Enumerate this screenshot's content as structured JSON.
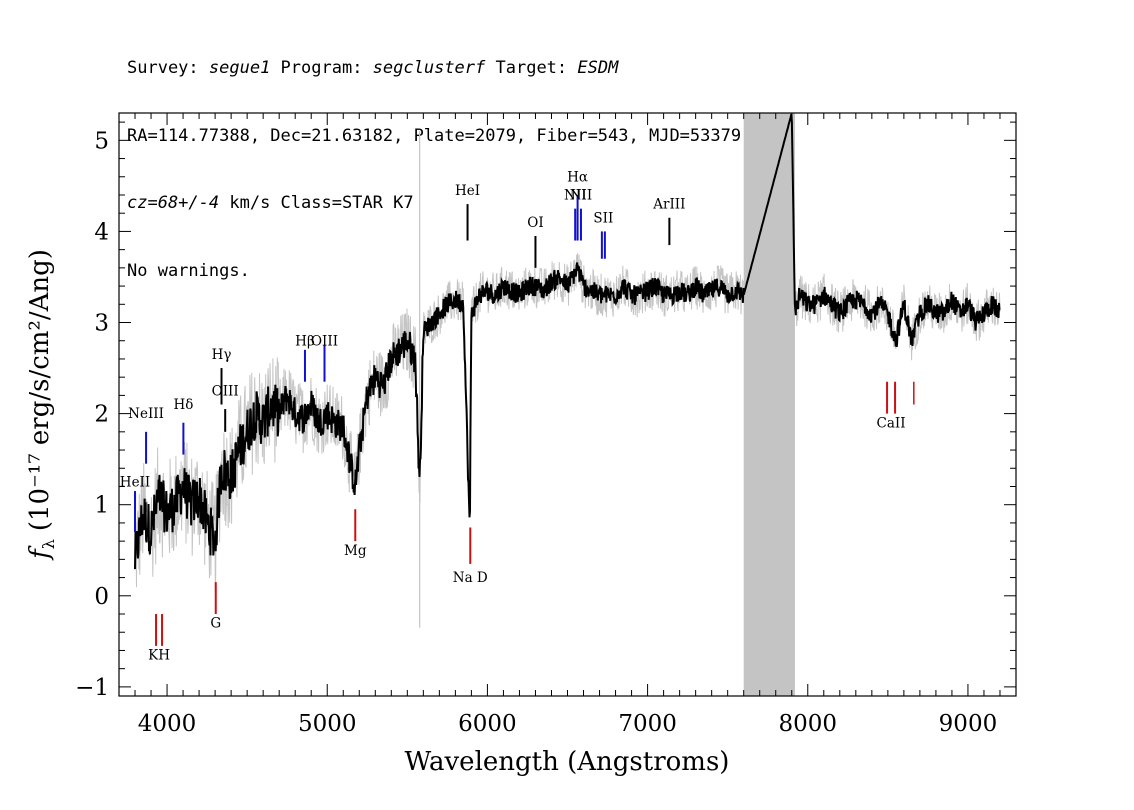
{
  "header": {
    "line1": [
      {
        "text": "Survey: ",
        "italic": false
      },
      {
        "text": "segue1",
        "italic": true
      },
      {
        "text": " Program: ",
        "italic": false
      },
      {
        "text": "segclusterf",
        "italic": true
      },
      {
        "text": " Target: ",
        "italic": false
      },
      {
        "text": "ESDM",
        "italic": true
      }
    ],
    "line2": "RA=114.77388, Dec=21.63182, Plate=2079, Fiber=543, MJD=53379",
    "line3": [
      {
        "text": "cz=68+/-4",
        "italic": true
      },
      {
        "text": " km/s Class=STAR K7",
        "italic": false
      }
    ],
    "line4": "No warnings."
  },
  "chart_data": {
    "type": "line",
    "xlabel": "Wavelength (Angstroms)",
    "ylabel_unit": "(10⁻¹⁷ erg/s/cm²/Ang)",
    "xlim": [
      3700,
      9300
    ],
    "ylim": [
      -1.1,
      5.3
    ],
    "xticks": [
      4000,
      5000,
      6000,
      7000,
      8000,
      9000
    ],
    "yticks": [
      -1,
      0,
      1,
      2,
      3,
      4,
      5
    ],
    "masked_region": [
      7600,
      7920
    ],
    "colors": {
      "flux": "#000000",
      "error": "#c4c4c4",
      "emission": "#1010d0",
      "absorption": "#d01010",
      "annotation": "#000000"
    },
    "series": [
      {
        "x": [
          3800,
          3850,
          3900,
          3950,
          4000,
          4050,
          4100,
          4150,
          4200,
          4250,
          4300,
          4340,
          4400,
          4450,
          4500,
          4550,
          4600,
          4650,
          4700,
          4750,
          4800,
          4850,
          4900,
          4950,
          5000,
          5050,
          5100,
          5150,
          5175,
          5200,
          5250,
          5300,
          5350,
          5400,
          5450,
          5500,
          5550,
          5577,
          5600,
          5650,
          5700,
          5750,
          5800,
          5850,
          5890,
          5900,
          5950,
          6000,
          6050,
          6100,
          6150,
          6200,
          6250,
          6300,
          6350,
          6400,
          6450,
          6500,
          6563,
          6600,
          6650,
          6700,
          6750,
          6800,
          6850,
          6900,
          6950,
          7000,
          7050,
          7100,
          7150,
          7200,
          7250,
          7300,
          7350,
          7400,
          7450,
          7500,
          7550,
          7600,
          7900,
          7920,
          7950,
          8000,
          8050,
          8100,
          8150,
          8200,
          8250,
          8300,
          8350,
          8400,
          8450,
          8500,
          8550,
          8600,
          8650,
          8700,
          8750,
          8800,
          8850,
          8900,
          8950,
          9000,
          9050,
          9100,
          9150,
          9200
        ],
        "y": [
          0.4,
          0.9,
          0.7,
          1.1,
          0.9,
          1.0,
          1.2,
          1.0,
          1.1,
          0.8,
          0.6,
          1.4,
          1.3,
          1.6,
          1.8,
          2.0,
          1.9,
          2.1,
          2.0,
          2.2,
          2.0,
          1.95,
          2.1,
          1.9,
          2.0,
          1.9,
          1.85,
          1.4,
          1.2,
          1.6,
          2.2,
          2.4,
          2.3,
          2.6,
          2.7,
          2.8,
          2.6,
          1.2,
          2.9,
          3.0,
          3.1,
          3.2,
          3.25,
          3.2,
          0.7,
          3.1,
          3.3,
          3.35,
          3.3,
          3.4,
          3.35,
          3.3,
          3.4,
          3.4,
          3.35,
          3.45,
          3.5,
          3.4,
          3.6,
          3.4,
          3.35,
          3.3,
          3.3,
          3.3,
          3.4,
          3.3,
          3.3,
          3.35,
          3.4,
          3.3,
          3.3,
          3.35,
          3.3,
          3.4,
          3.3,
          3.35,
          3.4,
          3.3,
          3.35,
          3.3,
          5.3,
          3.1,
          3.3,
          3.2,
          3.2,
          3.3,
          3.2,
          3.1,
          3.2,
          3.25,
          3.2,
          3.1,
          3.2,
          3.1,
          2.8,
          3.2,
          2.8,
          3.1,
          3.2,
          3.1,
          3.1,
          3.25,
          3.1,
          3.2,
          3.0,
          3.1,
          3.2,
          3.1
        ]
      }
    ],
    "emission_lines": [
      {
        "label": "HeII",
        "x": 3800
      },
      {
        "label": "NeIII",
        "x": 3869
      },
      {
        "label": "Hδ",
        "x": 4102
      },
      {
        "label": "Hγ",
        "x": 4340
      },
      {
        "label": "OIII",
        "x": 4363
      },
      {
        "label": "Hβ",
        "x": 4861
      },
      {
        "label": "OIII",
        "x": 4983
      },
      {
        "label": "HeI",
        "x": 5876
      },
      {
        "label": "OI",
        "x": 6300
      },
      {
        "label": "NII",
        "x": 6548
      },
      {
        "label": "Hα",
        "x": 6563
      },
      {
        "label": "NII",
        "x": 6584
      },
      {
        "label": "SII",
        "x": 6724
      },
      {
        "label": "ArIII",
        "x": 7136
      }
    ],
    "absorption_lines": [
      {
        "label": "KH",
        "x": 3950
      },
      {
        "label": "G",
        "x": 4304
      },
      {
        "label": "Mg",
        "x": 5175
      },
      {
        "label": "Na D",
        "x": 5893
      },
      {
        "label": "CaII",
        "x": 8520
      }
    ]
  }
}
